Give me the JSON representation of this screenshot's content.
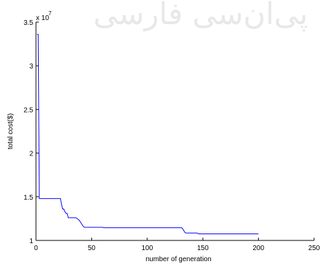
{
  "watermark": {
    "text": "پی‌ان‌سی فارسی"
  },
  "chart_data": {
    "type": "line",
    "title": "",
    "xlabel": "number of generation",
    "ylabel": "total cost($)",
    "y_scale_factor_label": "x 10",
    "y_scale_exponent": "7",
    "xlim": [
      0,
      250
    ],
    "ylim": [
      1,
      3.5
    ],
    "x_ticks": [
      0,
      50,
      100,
      150,
      200,
      250
    ],
    "y_ticks": [
      1,
      1.5,
      2,
      2.5,
      3,
      3.5
    ],
    "x_tick_labels": [
      "0",
      "50",
      "100",
      "150",
      "200",
      "250"
    ],
    "y_tick_labels": [
      "1",
      "1.5",
      "2",
      "2.5",
      "3",
      "3.5"
    ],
    "grid": false,
    "line_color": "#0000ff",
    "series": [
      {
        "x": [
          1,
          2,
          3,
          20,
          22,
          23,
          24,
          25,
          26,
          27,
          28,
          29,
          30,
          31,
          32,
          33,
          34,
          35,
          36,
          37,
          38,
          39,
          40,
          41,
          42,
          43,
          44,
          60,
          61,
          130,
          131,
          132,
          133,
          134,
          135,
          136,
          145,
          146,
          147,
          200
        ],
        "y": [
          3.36,
          3.36,
          1.48,
          1.48,
          1.48,
          1.41,
          1.36,
          1.36,
          1.33,
          1.31,
          1.31,
          1.26,
          1.26,
          1.26,
          1.26,
          1.26,
          1.26,
          1.26,
          1.26,
          1.25,
          1.24,
          1.23,
          1.21,
          1.19,
          1.17,
          1.155,
          1.15,
          1.15,
          1.145,
          1.145,
          1.145,
          1.13,
          1.11,
          1.09,
          1.085,
          1.085,
          1.085,
          1.075,
          1.075,
          1.075
        ]
      }
    ]
  }
}
